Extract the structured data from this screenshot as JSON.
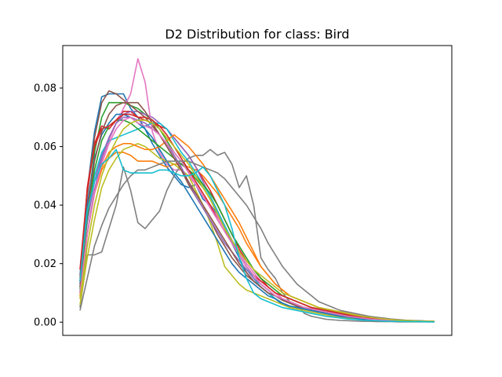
{
  "chart_data": {
    "type": "line",
    "title": "D2 Distribution for class: Bird",
    "xlabel": "",
    "ylabel": "",
    "x_ticks_visible": false,
    "x": [
      0,
      1,
      2,
      3,
      4,
      5,
      6,
      7,
      8,
      9,
      10,
      11,
      12,
      13,
      14,
      15,
      16,
      17,
      18,
      19,
      20,
      21,
      22,
      23,
      24,
      25,
      26,
      27,
      28,
      29,
      30,
      31,
      32,
      33,
      34,
      35,
      36,
      37,
      38,
      39,
      40,
      41,
      42,
      43,
      44,
      45,
      46,
      47,
      48,
      49
    ],
    "ylim": [
      -0.0045,
      0.0945
    ],
    "yticks": [
      0.0,
      0.02,
      0.04,
      0.06,
      0.08
    ],
    "ytick_labels": [
      "0.00",
      "0.02",
      "0.04",
      "0.06",
      "0.08"
    ],
    "grid": false,
    "legend": "none",
    "series": [
      {
        "color": "#1f77b4",
        "values": [
          0.016,
          0.045,
          0.065,
          0.077,
          0.078,
          0.078,
          0.078,
          0.073,
          0.07,
          0.066,
          0.061,
          0.057,
          0.053,
          0.05,
          0.047,
          0.046,
          0.047,
          0.042,
          0.04,
          0.037,
          0.032,
          0.027,
          0.022,
          0.017,
          0.014,
          0.012,
          0.01,
          0.008,
          0.006,
          0.0055,
          0.005,
          0.0045,
          0.004,
          0.0035,
          0.003,
          0.0025,
          0.002,
          0.0018,
          0.0015,
          0.0012,
          0.001,
          0.0008,
          0.0006,
          0.0005,
          0.0004,
          0.0003,
          0.0003,
          0.0002,
          0.0002,
          0.0002
        ]
      },
      {
        "color": "#ff7f0e",
        "values": [
          0.008,
          0.03,
          0.044,
          0.052,
          0.056,
          0.058,
          0.058,
          0.057,
          0.055,
          0.055,
          0.055,
          0.054,
          0.053,
          0.054,
          0.054,
          0.053,
          0.052,
          0.05,
          0.047,
          0.044,
          0.04,
          0.036,
          0.032,
          0.027,
          0.023,
          0.019,
          0.016,
          0.013,
          0.011,
          0.009,
          0.008,
          0.007,
          0.006,
          0.005,
          0.0045,
          0.004,
          0.0035,
          0.003,
          0.0025,
          0.002,
          0.0017,
          0.0014,
          0.0012,
          0.001,
          0.0008,
          0.0006,
          0.0005,
          0.0004,
          0.0003,
          0.0003
        ]
      },
      {
        "color": "#2ca02c",
        "values": [
          0.01,
          0.038,
          0.058,
          0.07,
          0.075,
          0.075,
          0.075,
          0.074,
          0.073,
          0.071,
          0.069,
          0.066,
          0.062,
          0.058,
          0.055,
          0.052,
          0.049,
          0.046,
          0.042,
          0.037,
          0.032,
          0.027,
          0.023,
          0.019,
          0.016,
          0.013,
          0.011,
          0.009,
          0.0075,
          0.0065,
          0.0055,
          0.005,
          0.0045,
          0.004,
          0.0035,
          0.003,
          0.0025,
          0.002,
          0.0017,
          0.0014,
          0.0011,
          0.0009,
          0.0007,
          0.0006,
          0.0005,
          0.0004,
          0.0003,
          0.0003,
          0.0002,
          0.0002
        ]
      },
      {
        "color": "#d62728",
        "values": [
          0.014,
          0.046,
          0.061,
          0.067,
          0.066,
          0.069,
          0.072,
          0.072,
          0.07,
          0.069,
          0.068,
          0.067,
          0.066,
          0.063,
          0.06,
          0.057,
          0.053,
          0.049,
          0.045,
          0.04,
          0.035,
          0.03,
          0.025,
          0.021,
          0.018,
          0.015,
          0.012,
          0.01,
          0.009,
          0.008,
          0.007,
          0.006,
          0.005,
          0.0045,
          0.004,
          0.0035,
          0.003,
          0.0025,
          0.002,
          0.0018,
          0.0015,
          0.0012,
          0.001,
          0.0008,
          0.0006,
          0.0005,
          0.0004,
          0.0003,
          0.0003,
          0.0002
        ]
      },
      {
        "color": "#9467bd",
        "values": [
          0.014,
          0.034,
          0.048,
          0.057,
          0.063,
          0.068,
          0.071,
          0.072,
          0.072,
          0.071,
          0.07,
          0.068,
          0.066,
          0.063,
          0.06,
          0.057,
          0.053,
          0.048,
          0.043,
          0.038,
          0.033,
          0.028,
          0.023,
          0.019,
          0.016,
          0.013,
          0.011,
          0.009,
          0.008,
          0.007,
          0.006,
          0.005,
          0.0045,
          0.004,
          0.0035,
          0.003,
          0.0025,
          0.002,
          0.0017,
          0.0014,
          0.0011,
          0.0009,
          0.0007,
          0.0006,
          0.0005,
          0.0004,
          0.0003,
          0.0003,
          0.0002,
          0.0002
        ]
      },
      {
        "color": "#8c564b",
        "values": [
          0.015,
          0.043,
          0.063,
          0.075,
          0.079,
          0.078,
          0.076,
          0.074,
          0.072,
          0.07,
          0.067,
          0.064,
          0.06,
          0.056,
          0.052,
          0.047,
          0.043,
          0.039,
          0.035,
          0.03,
          0.026,
          0.022,
          0.019,
          0.016,
          0.014,
          0.012,
          0.01,
          0.009,
          0.0075,
          0.0065,
          0.0055,
          0.005,
          0.0045,
          0.004,
          0.0035,
          0.003,
          0.0025,
          0.002,
          0.0017,
          0.0014,
          0.0011,
          0.0009,
          0.0007,
          0.0006,
          0.0005,
          0.0004,
          0.0003,
          0.0003,
          0.0002,
          0.0002
        ]
      },
      {
        "color": "#e377c2",
        "values": [
          0.012,
          0.03,
          0.045,
          0.055,
          0.062,
          0.068,
          0.073,
          0.078,
          0.09,
          0.082,
          0.065,
          0.058,
          0.054,
          0.052,
          0.052,
          0.05,
          0.047,
          0.043,
          0.04,
          0.036,
          0.032,
          0.028,
          0.024,
          0.02,
          0.017,
          0.014,
          0.012,
          0.01,
          0.008,
          0.007,
          0.006,
          0.005,
          0.0045,
          0.004,
          0.0035,
          0.003,
          0.0025,
          0.002,
          0.0017,
          0.0014,
          0.0011,
          0.0009,
          0.0007,
          0.0006,
          0.0005,
          0.0004,
          0.0003,
          0.0003,
          0.0002,
          0.0002
        ]
      },
      {
        "color": "#7f7f7f",
        "values": [
          0.005,
          0.023,
          0.023,
          0.024,
          0.032,
          0.04,
          0.053,
          0.045,
          0.034,
          0.032,
          0.035,
          0.038,
          0.045,
          0.05,
          0.054,
          0.056,
          0.057,
          0.057,
          0.059,
          0.057,
          0.058,
          0.054,
          0.046,
          0.05,
          0.04,
          0.022,
          0.018,
          0.015,
          0.01,
          0.007,
          0.006,
          0.003,
          0.002,
          0.0015,
          0.001,
          0.0008,
          0.0006,
          0.0005,
          0.0004,
          0.0003,
          0.0003,
          0.0002,
          0.0002,
          0.0002,
          0.0001,
          0.0001,
          0.0001,
          0.0001,
          0.0001,
          0.0001
        ]
      },
      {
        "color": "#bcbd22",
        "values": [
          0.006,
          0.022,
          0.035,
          0.046,
          0.052,
          0.056,
          0.059,
          0.06,
          0.061,
          0.06,
          0.058,
          0.056,
          0.055,
          0.054,
          0.052,
          0.05,
          0.045,
          0.04,
          0.034,
          0.027,
          0.019,
          0.016,
          0.013,
          0.011,
          0.01,
          0.009,
          0.008,
          0.007,
          0.006,
          0.005,
          0.0045,
          0.004,
          0.0035,
          0.003,
          0.0025,
          0.002,
          0.0017,
          0.0014,
          0.0011,
          0.0009,
          0.0007,
          0.0006,
          0.0005,
          0.0004,
          0.0003,
          0.0003,
          0.0002,
          0.0002,
          0.0002,
          0.0001
        ]
      },
      {
        "color": "#17becf",
        "values": [
          0.012,
          0.037,
          0.05,
          0.058,
          0.062,
          0.063,
          0.064,
          0.065,
          0.066,
          0.067,
          0.068,
          0.068,
          0.066,
          0.062,
          0.058,
          0.055,
          0.051,
          0.047,
          0.043,
          0.038,
          0.033,
          0.028,
          0.023,
          0.019,
          0.015,
          0.012,
          0.01,
          0.008,
          0.0065,
          0.0055,
          0.005,
          0.0045,
          0.004,
          0.0035,
          0.003,
          0.0025,
          0.002,
          0.0017,
          0.0014,
          0.0011,
          0.0009,
          0.0007,
          0.0006,
          0.0005,
          0.0004,
          0.0003,
          0.0003,
          0.0002,
          0.0002,
          0.0002
        ]
      },
      {
        "color": "#1f77b4",
        "values": [
          0.013,
          0.04,
          0.056,
          0.064,
          0.068,
          0.071,
          0.071,
          0.07,
          0.068,
          0.066,
          0.063,
          0.059,
          0.055,
          0.051,
          0.048,
          0.044,
          0.04,
          0.036,
          0.032,
          0.028,
          0.024,
          0.02,
          0.017,
          0.015,
          0.013,
          0.011,
          0.009,
          0.008,
          0.0065,
          0.0055,
          0.005,
          0.0045,
          0.004,
          0.0035,
          0.003,
          0.0025,
          0.002,
          0.0017,
          0.0014,
          0.0011,
          0.0009,
          0.0007,
          0.0006,
          0.0005,
          0.0004,
          0.0003,
          0.0003,
          0.0002,
          0.0002,
          0.0001
        ]
      },
      {
        "color": "#ff7f0e",
        "values": [
          0.009,
          0.03,
          0.045,
          0.053,
          0.058,
          0.06,
          0.061,
          0.061,
          0.06,
          0.059,
          0.059,
          0.06,
          0.062,
          0.064,
          0.062,
          0.06,
          0.057,
          0.054,
          0.05,
          0.046,
          0.042,
          0.038,
          0.034,
          0.029,
          0.024,
          0.019,
          0.016,
          0.013,
          0.011,
          0.009,
          0.008,
          0.007,
          0.006,
          0.005,
          0.0045,
          0.004,
          0.0035,
          0.003,
          0.0025,
          0.002,
          0.0017,
          0.0014,
          0.0011,
          0.0009,
          0.0007,
          0.0006,
          0.0005,
          0.0004,
          0.0003,
          0.0003
        ]
      },
      {
        "color": "#2ca02c",
        "values": [
          0.011,
          0.036,
          0.052,
          0.062,
          0.067,
          0.069,
          0.069,
          0.068,
          0.066,
          0.064,
          0.062,
          0.06,
          0.058,
          0.056,
          0.054,
          0.052,
          0.05,
          0.047,
          0.044,
          0.04,
          0.035,
          0.03,
          0.026,
          0.022,
          0.018,
          0.015,
          0.013,
          0.011,
          0.009,
          0.008,
          0.007,
          0.006,
          0.005,
          0.0045,
          0.004,
          0.0035,
          0.003,
          0.0025,
          0.002,
          0.0017,
          0.0014,
          0.0011,
          0.0009,
          0.0007,
          0.0006,
          0.0005,
          0.0004,
          0.0003,
          0.0003,
          0.0002
        ]
      },
      {
        "color": "#d62728",
        "values": [
          0.018,
          0.045,
          0.06,
          0.066,
          0.067,
          0.069,
          0.071,
          0.071,
          0.07,
          0.07,
          0.069,
          0.067,
          0.064,
          0.06,
          0.056,
          0.052,
          0.048,
          0.044,
          0.04,
          0.035,
          0.031,
          0.027,
          0.023,
          0.019,
          0.016,
          0.014,
          0.012,
          0.01,
          0.009,
          0.008,
          0.007,
          0.006,
          0.005,
          0.0045,
          0.004,
          0.0035,
          0.003,
          0.0025,
          0.002,
          0.0017,
          0.0014,
          0.0011,
          0.0009,
          0.0007,
          0.0006,
          0.0005,
          0.0004,
          0.0003,
          0.0003,
          0.0002
        ]
      },
      {
        "color": "#9467bd",
        "values": [
          0.01,
          0.03,
          0.045,
          0.056,
          0.063,
          0.068,
          0.07,
          0.07,
          0.069,
          0.068,
          0.066,
          0.064,
          0.061,
          0.057,
          0.053,
          0.048,
          0.043,
          0.039,
          0.035,
          0.031,
          0.027,
          0.024,
          0.021,
          0.018,
          0.015,
          0.013,
          0.011,
          0.009,
          0.008,
          0.007,
          0.006,
          0.005,
          0.0045,
          0.004,
          0.0035,
          0.003,
          0.0025,
          0.002,
          0.0017,
          0.0014,
          0.0011,
          0.0009,
          0.0007,
          0.0006,
          0.0005,
          0.0004,
          0.0003,
          0.0003,
          0.0002,
          0.0002
        ]
      },
      {
        "color": "#8c564b",
        "values": [
          0.012,
          0.038,
          0.055,
          0.065,
          0.071,
          0.074,
          0.075,
          0.075,
          0.075,
          0.072,
          0.068,
          0.064,
          0.06,
          0.056,
          0.052,
          0.048,
          0.044,
          0.04,
          0.036,
          0.032,
          0.028,
          0.024,
          0.02,
          0.017,
          0.014,
          0.012,
          0.01,
          0.009,
          0.0075,
          0.0065,
          0.0055,
          0.005,
          0.0045,
          0.004,
          0.0035,
          0.003,
          0.0025,
          0.002,
          0.0017,
          0.0014,
          0.0011,
          0.0009,
          0.0007,
          0.0006,
          0.0005,
          0.0004,
          0.0003,
          0.0003,
          0.0002,
          0.0002
        ]
      },
      {
        "color": "#e377c2",
        "values": [
          0.01,
          0.03,
          0.044,
          0.054,
          0.061,
          0.066,
          0.069,
          0.07,
          0.068,
          0.067,
          0.066,
          0.064,
          0.061,
          0.058,
          0.055,
          0.051,
          0.047,
          0.043,
          0.039,
          0.035,
          0.031,
          0.027,
          0.023,
          0.019,
          0.016,
          0.013,
          0.011,
          0.009,
          0.008,
          0.007,
          0.006,
          0.005,
          0.0045,
          0.004,
          0.0035,
          0.003,
          0.0025,
          0.002,
          0.0017,
          0.0014,
          0.0011,
          0.0009,
          0.0007,
          0.0006,
          0.0005,
          0.0004,
          0.0003,
          0.0003,
          0.0002,
          0.0002
        ]
      },
      {
        "color": "#7f7f7f",
        "values": [
          0.004,
          0.015,
          0.026,
          0.033,
          0.039,
          0.043,
          0.047,
          0.05,
          0.052,
          0.052,
          0.053,
          0.054,
          0.055,
          0.055,
          0.055,
          0.055,
          0.054,
          0.053,
          0.052,
          0.051,
          0.049,
          0.046,
          0.043,
          0.04,
          0.036,
          0.032,
          0.027,
          0.023,
          0.019,
          0.016,
          0.013,
          0.011,
          0.009,
          0.007,
          0.006,
          0.005,
          0.004,
          0.0035,
          0.003,
          0.0025,
          0.002,
          0.0017,
          0.0014,
          0.0011,
          0.0009,
          0.0007,
          0.0006,
          0.0005,
          0.0004,
          0.0003
        ]
      },
      {
        "color": "#bcbd22",
        "values": [
          0.008,
          0.026,
          0.04,
          0.05,
          0.057,
          0.062,
          0.066,
          0.068,
          0.069,
          0.069,
          0.068,
          0.066,
          0.063,
          0.06,
          0.057,
          0.054,
          0.05,
          0.046,
          0.042,
          0.037,
          0.032,
          0.028,
          0.024,
          0.021,
          0.018,
          0.016,
          0.014,
          0.012,
          0.01,
          0.009,
          0.008,
          0.007,
          0.006,
          0.005,
          0.0045,
          0.004,
          0.0035,
          0.003,
          0.0025,
          0.002,
          0.0017,
          0.0014,
          0.0011,
          0.0009,
          0.0007,
          0.0006,
          0.0005,
          0.0004,
          0.0003,
          0.0003
        ]
      },
      {
        "color": "#17becf",
        "values": [
          0.014,
          0.038,
          0.048,
          0.054,
          0.056,
          0.059,
          0.052,
          0.051,
          0.051,
          0.051,
          0.051,
          0.052,
          0.052,
          0.051,
          0.05,
          0.05,
          0.051,
          0.053,
          0.05,
          0.045,
          0.04,
          0.032,
          0.022,
          0.015,
          0.01,
          0.008,
          0.007,
          0.006,
          0.005,
          0.0045,
          0.004,
          0.0035,
          0.003,
          0.0025,
          0.002,
          0.0017,
          0.0014,
          0.0011,
          0.0009,
          0.0007,
          0.0006,
          0.0005,
          0.0004,
          0.0003,
          0.0003,
          0.0002,
          0.0002,
          0.0002,
          0.0001,
          0.0001
        ]
      }
    ]
  }
}
